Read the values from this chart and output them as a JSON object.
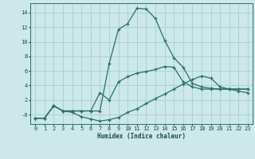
{
  "xlabel": "Humidex (Indice chaleur)",
  "bg_color": "#cce8e8",
  "grid_color": "#aacece",
  "line_color": "#2a6e6e",
  "xlim": [
    -0.5,
    23.5
  ],
  "ylim": [
    -1.3,
    15.3
  ],
  "yticks": [
    0,
    2,
    4,
    6,
    8,
    10,
    12,
    14
  ],
  "ytick_labels": [
    "-0",
    "2",
    "4",
    "6",
    "8",
    "10",
    "12",
    "14"
  ],
  "xticks": [
    0,
    1,
    2,
    3,
    4,
    5,
    6,
    7,
    8,
    9,
    10,
    11,
    12,
    13,
    14,
    15,
    16,
    17,
    18,
    19,
    20,
    21,
    22,
    23
  ],
  "line1_x": [
    0,
    1,
    2,
    3,
    4,
    5,
    6,
    7,
    8,
    9,
    10,
    11,
    12,
    13,
    14,
    15,
    16,
    17,
    18,
    19,
    20,
    21,
    22,
    23
  ],
  "line1_y": [
    -0.5,
    -0.5,
    1.2,
    0.5,
    0.5,
    0.5,
    0.5,
    0.5,
    7.0,
    11.7,
    12.5,
    14.6,
    14.5,
    13.2,
    10.2,
    7.8,
    6.5,
    4.3,
    3.8,
    3.6,
    3.5,
    3.5,
    3.5,
    3.5
  ],
  "line2_x": [
    0,
    1,
    2,
    3,
    4,
    5,
    6,
    7,
    8,
    9,
    10,
    11,
    12,
    13,
    14,
    15,
    16,
    17,
    18,
    19,
    20,
    21,
    22,
    23
  ],
  "line2_y": [
    -0.5,
    -0.5,
    1.2,
    0.5,
    0.5,
    0.5,
    0.5,
    3.0,
    2.0,
    4.5,
    5.2,
    5.7,
    5.9,
    6.2,
    6.6,
    6.5,
    4.5,
    3.8,
    3.5,
    3.5,
    3.5,
    3.5,
    3.5,
    3.5
  ],
  "line3_x": [
    0,
    1,
    2,
    3,
    4,
    5,
    6,
    7,
    8,
    9,
    10,
    11,
    12,
    13,
    14,
    15,
    16,
    17,
    18,
    19,
    20,
    21,
    22,
    23
  ],
  "line3_y": [
    -0.5,
    -0.5,
    1.2,
    0.5,
    0.3,
    -0.3,
    -0.6,
    -0.9,
    -0.7,
    -0.4,
    0.3,
    0.8,
    1.5,
    2.2,
    2.8,
    3.5,
    4.2,
    4.8,
    5.3,
    5.0,
    3.8,
    3.5,
    3.2,
    3.0
  ]
}
